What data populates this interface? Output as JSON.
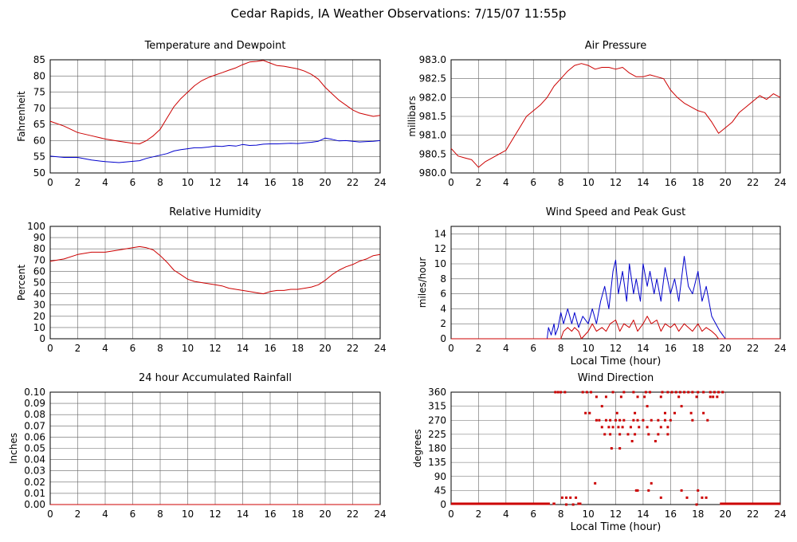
{
  "page_title": "Cedar Rapids, IA Weather Observations: 7/15/07 11:55p",
  "colors": {
    "primary": "#cc0000",
    "secondary": "#0000cc",
    "grid": "#666666"
  },
  "chart_data": [
    {
      "id": "temp",
      "type": "line",
      "title": "Temperature and Dewpoint",
      "xlabel": "",
      "ylabel": "Fahrenheit",
      "xlim": [
        0,
        24
      ],
      "ylim": [
        50,
        85
      ],
      "xticks": [
        0,
        2,
        4,
        6,
        8,
        10,
        12,
        14,
        16,
        18,
        20,
        22,
        24
      ],
      "yticks": [
        50,
        55,
        60,
        65,
        70,
        75,
        80,
        85
      ],
      "grid": true,
      "series": [
        {
          "color": "#cc0000",
          "x": [
            0,
            1,
            2,
            3,
            4,
            5,
            6,
            6.5,
            7,
            7.5,
            8,
            8.5,
            9,
            9.5,
            10,
            10.5,
            11,
            11.5,
            12,
            12.5,
            13,
            13.5,
            14,
            14.5,
            15,
            15.5,
            16,
            16.5,
            17,
            17.5,
            18,
            18.5,
            19,
            19.5,
            20,
            20.5,
            21,
            21.5,
            22,
            22.5,
            23,
            23.5,
            24
          ],
          "y": [
            66,
            64.5,
            62.5,
            61.5,
            60.5,
            59.8,
            59.2,
            59.0,
            60.0,
            61.5,
            63.5,
            67,
            70.5,
            73,
            75,
            77,
            78.5,
            79.5,
            80.3,
            81,
            81.8,
            82.5,
            83.5,
            84.3,
            84.5,
            84.8,
            84.0,
            83.2,
            83.0,
            82.6,
            82.2,
            81.5,
            80.5,
            79,
            76.5,
            74.5,
            72.5,
            71,
            69.5,
            68.5,
            68,
            67.5,
            67.8
          ]
        },
        {
          "color": "#0000cc",
          "x": [
            0,
            1,
            2,
            3,
            4,
            5,
            6,
            6.5,
            7,
            7.5,
            8,
            8.5,
            9,
            9.5,
            10,
            10.5,
            11,
            11.5,
            12,
            12.5,
            13,
            13.5,
            14,
            14.5,
            15,
            15.5,
            16,
            16.5,
            17,
            17.5,
            18,
            18.5,
            19,
            19.5,
            20,
            20.5,
            21,
            21.5,
            22,
            22.5,
            23,
            23.5,
            24
          ],
          "y": [
            55.2,
            54.8,
            54.8,
            54.0,
            53.5,
            53.2,
            53.6,
            53.8,
            54.5,
            55.0,
            55.5,
            56.0,
            56.8,
            57.2,
            57.5,
            57.8,
            57.8,
            58.0,
            58.3,
            58.2,
            58.5,
            58.3,
            58.8,
            58.5,
            58.6,
            58.9,
            59.0,
            59.0,
            59.1,
            59.2,
            59.1,
            59.3,
            59.5,
            59.8,
            60.8,
            60.4,
            59.9,
            60.0,
            59.8,
            59.6,
            59.7,
            59.8,
            60.0
          ]
        }
      ]
    },
    {
      "id": "pressure",
      "type": "line",
      "title": "Air Pressure",
      "xlabel": "",
      "ylabel": "millibars",
      "xlim": [
        0,
        24
      ],
      "ylim": [
        980.0,
        983.0
      ],
      "xticks": [
        0,
        2,
        4,
        6,
        8,
        10,
        12,
        14,
        16,
        18,
        20,
        22,
        24
      ],
      "yticks": [
        "980.0",
        "980.5",
        "981.0",
        "981.5",
        "982.0",
        "982.5",
        "983.0"
      ],
      "grid": true,
      "series": [
        {
          "color": "#cc0000",
          "x": [
            0,
            0.5,
            1,
            1.5,
            2,
            2.5,
            3,
            3.5,
            4,
            4.5,
            5,
            5.5,
            6,
            6.5,
            7,
            7.5,
            8,
            8.5,
            9,
            9.5,
            10,
            10.5,
            11,
            11.5,
            12,
            12.5,
            13,
            13.5,
            14,
            14.5,
            15,
            15.5,
            16,
            16.5,
            17,
            17.5,
            18,
            18.5,
            19,
            19.5,
            20,
            20.5,
            21,
            21.5,
            22,
            22.5,
            23,
            23.5,
            24
          ],
          "y": [
            980.65,
            980.45,
            980.4,
            980.35,
            980.15,
            980.3,
            980.4,
            980.5,
            980.6,
            980.9,
            981.2,
            981.5,
            981.65,
            981.8,
            982.0,
            982.3,
            982.5,
            982.7,
            982.85,
            982.9,
            982.85,
            982.75,
            982.8,
            982.8,
            982.75,
            982.8,
            982.65,
            982.55,
            982.55,
            982.6,
            982.55,
            982.5,
            982.2,
            982.0,
            981.85,
            981.75,
            981.65,
            981.6,
            981.35,
            981.05,
            981.2,
            981.35,
            981.6,
            981.75,
            981.9,
            982.05,
            981.95,
            982.1,
            982.0
          ]
        }
      ]
    },
    {
      "id": "humidity",
      "type": "line",
      "title": "Relative Humidity",
      "xlabel": "",
      "ylabel": "Percent",
      "xlim": [
        0,
        24
      ],
      "ylim": [
        0,
        100
      ],
      "xticks": [
        0,
        2,
        4,
        6,
        8,
        10,
        12,
        14,
        16,
        18,
        20,
        22,
        24
      ],
      "yticks": [
        0,
        10,
        20,
        30,
        40,
        50,
        60,
        70,
        80,
        90,
        100
      ],
      "grid": true,
      "series": [
        {
          "color": "#cc0000",
          "x": [
            0,
            1,
            2,
            3,
            4,
            5,
            6,
            6.5,
            7,
            7.5,
            8,
            8.5,
            9,
            9.5,
            10,
            10.5,
            11,
            11.5,
            12,
            12.5,
            13,
            13.5,
            14,
            14.5,
            15,
            15.5,
            16,
            16.5,
            17,
            17.5,
            18,
            18.5,
            19,
            19.5,
            20,
            20.5,
            21,
            21.5,
            22,
            22.5,
            23,
            23.5,
            24
          ],
          "y": [
            69,
            71,
            75,
            77,
            77,
            79,
            81,
            82,
            81,
            79,
            74,
            68,
            61,
            57,
            53,
            51,
            50,
            49,
            48,
            47,
            45,
            44,
            43,
            42,
            41,
            40,
            42,
            43,
            43,
            44,
            44,
            45,
            46,
            48,
            52,
            57,
            61,
            64,
            66,
            69,
            71,
            74,
            75
          ]
        }
      ]
    },
    {
      "id": "wind",
      "type": "line",
      "title": "Wind Speed and Peak Gust",
      "xlabel": "Local Time (hour)",
      "ylabel": "miles/hour",
      "xlim": [
        0,
        24
      ],
      "ylim": [
        0,
        15
      ],
      "xticks": [
        0,
        2,
        4,
        6,
        8,
        10,
        12,
        14,
        16,
        18,
        20,
        22,
        24
      ],
      "yticks": [
        0,
        2,
        4,
        6,
        8,
        10,
        12,
        14
      ],
      "grid": true,
      "series": [
        {
          "color": "#0000cc",
          "x": [
            0,
            7.0,
            7.1,
            7.3,
            7.5,
            7.6,
            7.8,
            8.0,
            8.2,
            8.5,
            8.8,
            9.0,
            9.3,
            9.6,
            10.0,
            10.3,
            10.6,
            10.9,
            11.2,
            11.5,
            11.8,
            12.0,
            12.2,
            12.5,
            12.8,
            13.0,
            13.3,
            13.5,
            13.8,
            14.0,
            14.3,
            14.5,
            14.8,
            15.0,
            15.3,
            15.6,
            16.0,
            16.3,
            16.6,
            17.0,
            17.3,
            17.6,
            18.0,
            18.3,
            18.6,
            19.0,
            19.3,
            19.6,
            19.8,
            20.0,
            24.0
          ],
          "y": [
            0,
            0,
            1.5,
            0.5,
            2,
            0.5,
            1.5,
            3.5,
            2,
            4,
            2,
            3.5,
            1.5,
            3,
            2,
            4,
            2,
            5,
            7,
            4,
            9,
            10.5,
            6,
            9,
            5,
            10,
            6,
            8,
            5,
            10,
            7,
            9,
            6,
            8,
            5,
            9.5,
            6,
            8,
            5,
            11,
            7,
            6,
            9,
            5,
            7,
            3,
            2,
            1,
            0.5,
            0,
            0
          ]
        },
        {
          "color": "#cc0000",
          "x": [
            0,
            8.0,
            8.2,
            8.5,
            8.8,
            9.0,
            9.3,
            9.5,
            10.0,
            10.3,
            10.6,
            11.0,
            11.3,
            11.6,
            12.0,
            12.3,
            12.6,
            13.0,
            13.3,
            13.6,
            14.0,
            14.3,
            14.6,
            15.0,
            15.3,
            15.6,
            16.0,
            16.3,
            16.6,
            17.0,
            17.3,
            17.6,
            18.0,
            18.3,
            18.6,
            19.0,
            19.3,
            19.5,
            24.0
          ],
          "y": [
            0,
            0,
            1,
            1.5,
            1,
            1.5,
            1,
            0,
            1,
            2,
            1,
            1.5,
            1,
            2,
            2.5,
            1,
            2,
            1.5,
            2.5,
            1,
            2,
            3,
            2,
            2.5,
            1,
            2,
            1.5,
            2,
            1,
            2,
            1.5,
            1,
            2,
            1,
            1.5,
            1,
            0.5,
            0,
            0
          ]
        }
      ]
    },
    {
      "id": "rain",
      "type": "line",
      "title": "24 hour Accumulated Rainfall",
      "xlabel": "",
      "ylabel": "Inches",
      "xlim": [
        0,
        24
      ],
      "ylim": [
        0,
        0.1
      ],
      "xticks": [
        0,
        2,
        4,
        6,
        8,
        10,
        12,
        14,
        16,
        18,
        20,
        22,
        24
      ],
      "yticks": [
        "0.00",
        "0.01",
        "0.02",
        "0.03",
        "0.04",
        "0.05",
        "0.06",
        "0.07",
        "0.08",
        "0.09",
        "0.10"
      ],
      "grid": true,
      "series": [
        {
          "color": "#cc0000",
          "x": [
            0,
            24
          ],
          "y": [
            0,
            0
          ]
        }
      ]
    },
    {
      "id": "direction",
      "type": "scatter",
      "title": "Wind Direction",
      "xlabel": "Local Time (hour)",
      "ylabel": "degrees",
      "xlim": [
        0,
        24
      ],
      "ylim": [
        0,
        360
      ],
      "xticks": [
        0,
        2,
        4,
        6,
        8,
        10,
        12,
        14,
        16,
        18,
        20,
        22,
        24
      ],
      "yticks": [
        0,
        45,
        90,
        135,
        180,
        225,
        270,
        315,
        360
      ],
      "grid": true,
      "series": [
        {
          "color": "#cc0000",
          "x": [
            7.6,
            7.8,
            8.0,
            8.3,
            9.6,
            9.9,
            10.2,
            11.8,
            12.6,
            13.3,
            14.2,
            14.5,
            15.4,
            15.8,
            16.1,
            16.4,
            16.7,
            17.0,
            17.3,
            17.6,
            18.0,
            18.4,
            18.9,
            19.2,
            19.5,
            19.8,
            10.6,
            11.3,
            12.4,
            13.6,
            14.1,
            15.3,
            16.6,
            17.9,
            18.9,
            19.1,
            19.4,
            9.8,
            10.1,
            11.0,
            12.1,
            13.4,
            14.3,
            15.6,
            16.3,
            16.8,
            17.5,
            18.4,
            10.6,
            10.8,
            11.3,
            11.6,
            12.0,
            12.3,
            12.6,
            13.3,
            13.6,
            14.0,
            14.6,
            15.1,
            15.6,
            16.0,
            17.6,
            18.7,
            11.0,
            11.5,
            11.8,
            12.2,
            12.5,
            13.1,
            13.7,
            14.3,
            15.3,
            15.8,
            11.2,
            11.6,
            12.3,
            12.9,
            13.4,
            14.4,
            15.1,
            15.8,
            11.7,
            12.3,
            13.2,
            14.9,
            10.5,
            14.6,
            8.1,
            8.4,
            8.7,
            9.1,
            13.6,
            14.4,
            16.8,
            18.0,
            18.3,
            18.6,
            8.4,
            8.9,
            13.5,
            15.3,
            17.2,
            17.9
          ],
          "y": [
            360,
            360,
            360,
            360,
            360,
            360,
            360,
            360,
            360,
            360,
            360,
            360,
            360,
            360,
            360,
            360,
            360,
            360,
            360,
            360,
            360,
            360,
            360,
            360,
            360,
            360,
            345,
            345,
            345,
            345,
            345,
            345,
            345,
            345,
            345,
            345,
            345,
            293,
            293,
            315,
            293,
            293,
            315,
            293,
            293,
            315,
            293,
            293,
            270,
            270,
            270,
            270,
            270,
            270,
            270,
            270,
            270,
            270,
            270,
            270,
            270,
            270,
            270,
            270,
            248,
            248,
            248,
            248,
            248,
            248,
            248,
            248,
            248,
            248,
            225,
            225,
            225,
            225,
            225,
            225,
            225,
            225,
            180,
            180,
            203,
            203,
            68,
            68,
            22,
            22,
            22,
            22,
            45,
            45,
            45,
            45,
            22,
            22,
            0,
            0,
            45,
            22,
            22,
            0
          ]
        },
        {
          "color": "#cc0000",
          "x": [
            0,
            7.2,
            7.4,
            7.6,
            9.2,
            9.5,
            19.6,
            24
          ],
          "y": [
            0,
            0,
            0,
            0,
            0,
            0,
            0,
            0
          ]
        }
      ]
    }
  ]
}
